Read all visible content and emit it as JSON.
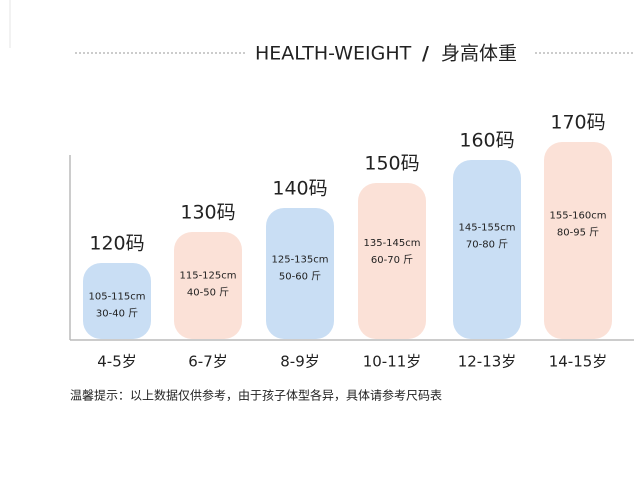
{
  "header": {
    "title_en": "HEALTH-WEIGHT",
    "separator": "/",
    "title_cn": "身高体重"
  },
  "columns": [
    {
      "size": "120码",
      "height": "105-115cm",
      "weight": "30-40 斤",
      "age": "4-5岁"
    },
    {
      "size": "130码",
      "height": "115-125cm",
      "weight": "40-50 斤",
      "age": "6-7岁"
    },
    {
      "size": "140码",
      "height": "125-135cm",
      "weight": "50-60 斤",
      "age": "8-9岁"
    },
    {
      "size": "150码",
      "height": "135-145cm",
      "weight": "60-70 斤",
      "age": "10-11岁"
    },
    {
      "size": "160码",
      "height": "145-155cm",
      "weight": "70-80 斤",
      "age": "12-13岁"
    },
    {
      "size": "170码",
      "height": "155-160cm",
      "weight": "80-95 斤",
      "age": "14-15岁"
    }
  ],
  "footnote": "温馨提示：以上数据仅供参考，由于孩子体型各异，具体请参考尺码表"
}
